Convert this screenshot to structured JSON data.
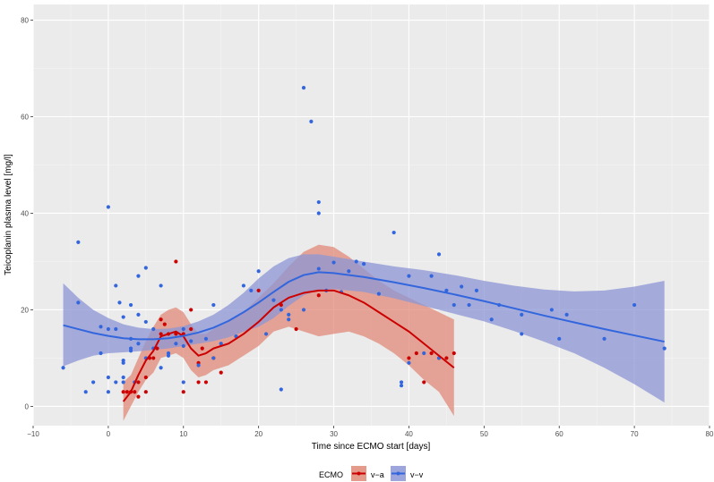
{
  "chart_data": {
    "type": "scatter",
    "title": "",
    "xlabel": "Time since ECMO start [days]",
    "ylabel": "Teicoplanin plasma level [mg/l]",
    "xlim": [
      -10,
      80
    ],
    "ylim": [
      0,
      80
    ],
    "xticks": [
      -10,
      0,
      10,
      20,
      30,
      40,
      50,
      60,
      70,
      80
    ],
    "yticks": [
      0,
      20,
      40,
      60,
      80
    ],
    "grid": true,
    "legend": {
      "title": "ECMO",
      "placement": "bottom",
      "entries": [
        {
          "label": "v−a",
          "color": "#cc0000",
          "band_color": "#e08a78"
        },
        {
          "label": "v−v",
          "color": "#3366dd",
          "band_color": "#8c96d6"
        }
      ]
    },
    "series": [
      {
        "name": "v−a",
        "color": "#cc0000",
        "points": [
          [
            2,
            3
          ],
          [
            2.5,
            3
          ],
          [
            3,
            3
          ],
          [
            3.5,
            3
          ],
          [
            4,
            2
          ],
          [
            4,
            5
          ],
          [
            5,
            3
          ],
          [
            5,
            6
          ],
          [
            5.5,
            10
          ],
          [
            6,
            10
          ],
          [
            6.5,
            12
          ],
          [
            7,
            18
          ],
          [
            7,
            15
          ],
          [
            7.5,
            17
          ],
          [
            8,
            15
          ],
          [
            9,
            30
          ],
          [
            9,
            15
          ],
          [
            10,
            3
          ],
          [
            10,
            15
          ],
          [
            11,
            16
          ],
          [
            11,
            20
          ],
          [
            12,
            5
          ],
          [
            12,
            9
          ],
          [
            12.5,
            12
          ],
          [
            13,
            5
          ],
          [
            14,
            10
          ],
          [
            15,
            7
          ],
          [
            20,
            24
          ],
          [
            23,
            21
          ],
          [
            25,
            16
          ],
          [
            28,
            23
          ],
          [
            40,
            10
          ],
          [
            41,
            11
          ],
          [
            42,
            5
          ],
          [
            43,
            11
          ],
          [
            44,
            10
          ],
          [
            45,
            10
          ],
          [
            46,
            11
          ]
        ],
        "smooth": [
          [
            2,
            1.0
          ],
          [
            3,
            3.0
          ],
          [
            4,
            6.5
          ],
          [
            5,
            9.5
          ],
          [
            6,
            11.5
          ],
          [
            7,
            14.5
          ],
          [
            8,
            15.0
          ],
          [
            9,
            15.5
          ],
          [
            10,
            14.5
          ],
          [
            11,
            12.0
          ],
          [
            12,
            10.5
          ],
          [
            13,
            11.0
          ],
          [
            14,
            12.0
          ],
          [
            16,
            13.0
          ],
          [
            18,
            15.0
          ],
          [
            20,
            17.5
          ],
          [
            22,
            20.5
          ],
          [
            24,
            22.5
          ],
          [
            26,
            23.5
          ],
          [
            28,
            24.0
          ],
          [
            30,
            24.0
          ],
          [
            32,
            23.0
          ],
          [
            34,
            21.5
          ],
          [
            36,
            19.5
          ],
          [
            38,
            17.5
          ],
          [
            40,
            15.5
          ],
          [
            42,
            13.0
          ],
          [
            44,
            10.5
          ],
          [
            46,
            8.0
          ]
        ],
        "upper": [
          [
            2,
            5.0
          ],
          [
            3,
            6.5
          ],
          [
            4,
            10.0
          ],
          [
            5,
            13.5
          ],
          [
            6,
            16.5
          ],
          [
            7,
            19.0
          ],
          [
            8,
            20.0
          ],
          [
            9,
            20.5
          ],
          [
            10,
            19.5
          ],
          [
            11,
            17.0
          ],
          [
            12,
            15.0
          ],
          [
            13,
            15.0
          ],
          [
            14,
            16.0
          ],
          [
            16,
            17.5
          ],
          [
            18,
            19.5
          ],
          [
            20,
            22.5
          ],
          [
            22,
            25.5
          ],
          [
            24,
            29.0
          ],
          [
            26,
            32.0
          ],
          [
            28,
            33.5
          ],
          [
            30,
            33.0
          ],
          [
            32,
            31.0
          ],
          [
            34,
            28.5
          ],
          [
            36,
            26.0
          ],
          [
            38,
            24.0
          ],
          [
            40,
            22.5
          ],
          [
            42,
            21.0
          ],
          [
            44,
            19.5
          ],
          [
            46,
            18.0
          ]
        ],
        "lower": [
          [
            2,
            -3.0
          ],
          [
            3,
            0.0
          ],
          [
            4,
            3.0
          ],
          [
            5,
            5.5
          ],
          [
            6,
            7.0
          ],
          [
            7,
            10.0
          ],
          [
            8,
            10.5
          ],
          [
            9,
            11.0
          ],
          [
            10,
            10.0
          ],
          [
            11,
            7.5
          ],
          [
            12,
            6.0
          ],
          [
            13,
            6.5
          ],
          [
            14,
            7.5
          ],
          [
            16,
            8.5
          ],
          [
            18,
            10.5
          ],
          [
            20,
            12.5
          ],
          [
            22,
            15.5
          ],
          [
            24,
            16.5
          ],
          [
            26,
            15.5
          ],
          [
            28,
            14.5
          ],
          [
            30,
            15.0
          ],
          [
            32,
            15.5
          ],
          [
            34,
            14.5
          ],
          [
            36,
            13.0
          ],
          [
            38,
            11.0
          ],
          [
            40,
            8.5
          ],
          [
            42,
            5.5
          ],
          [
            44,
            3.0
          ],
          [
            46,
            -2.0
          ]
        ]
      },
      {
        "name": "v−v",
        "color": "#3366dd",
        "points": [
          [
            -6,
            8
          ],
          [
            -4,
            34
          ],
          [
            -4,
            21.5
          ],
          [
            -3,
            3
          ],
          [
            -2,
            5
          ],
          [
            -1,
            11
          ],
          [
            -1,
            16.5
          ],
          [
            0,
            41.3
          ],
          [
            0,
            6
          ],
          [
            0,
            3
          ],
          [
            0,
            16
          ],
          [
            1,
            25
          ],
          [
            1,
            5
          ],
          [
            1,
            16
          ],
          [
            1.5,
            21.5
          ],
          [
            2,
            18.5
          ],
          [
            2,
            9
          ],
          [
            2,
            6
          ],
          [
            2,
            5
          ],
          [
            2,
            9.5
          ],
          [
            3,
            14
          ],
          [
            3,
            11.5
          ],
          [
            3,
            21
          ],
          [
            3,
            12
          ],
          [
            3.5,
            5
          ],
          [
            4,
            27
          ],
          [
            4,
            13
          ],
          [
            4,
            19
          ],
          [
            5,
            28.7
          ],
          [
            5,
            17.5
          ],
          [
            5,
            10
          ],
          [
            6,
            16
          ],
          [
            6,
            12
          ],
          [
            7,
            25
          ],
          [
            7,
            8
          ],
          [
            8,
            11
          ],
          [
            8,
            10.5
          ],
          [
            9,
            13
          ],
          [
            10,
            5
          ],
          [
            10,
            12.5
          ],
          [
            10,
            16
          ],
          [
            11,
            13.5
          ],
          [
            12,
            8.5
          ],
          [
            13,
            14
          ],
          [
            14,
            21
          ],
          [
            14,
            10
          ],
          [
            15,
            13
          ],
          [
            17,
            14.5
          ],
          [
            18,
            25
          ],
          [
            19,
            24
          ],
          [
            20,
            28
          ],
          [
            21,
            15
          ],
          [
            22,
            22
          ],
          [
            23,
            3.5
          ],
          [
            23,
            20
          ],
          [
            24,
            18
          ],
          [
            24,
            19
          ],
          [
            26,
            66
          ],
          [
            26,
            20
          ],
          [
            27,
            59
          ],
          [
            28,
            42.3
          ],
          [
            28,
            40
          ],
          [
            28,
            28.5
          ],
          [
            29,
            24
          ],
          [
            30,
            29.8
          ],
          [
            31,
            23.7
          ],
          [
            32,
            28
          ],
          [
            33,
            30
          ],
          [
            34,
            29.5
          ],
          [
            36,
            23.3
          ],
          [
            38,
            36
          ],
          [
            39,
            5
          ],
          [
            39,
            4.3
          ],
          [
            40,
            27
          ],
          [
            40,
            9
          ],
          [
            42,
            11
          ],
          [
            43,
            27
          ],
          [
            44,
            31.5
          ],
          [
            44,
            10
          ],
          [
            45,
            24
          ],
          [
            46,
            21
          ],
          [
            47,
            24.8
          ],
          [
            48,
            21
          ],
          [
            49,
            24
          ],
          [
            51,
            18
          ],
          [
            52,
            21
          ],
          [
            55,
            19
          ],
          [
            55,
            15
          ],
          [
            59,
            20
          ],
          [
            60,
            14
          ],
          [
            61,
            19
          ],
          [
            66,
            14
          ],
          [
            70,
            21
          ],
          [
            74,
            12
          ]
        ],
        "smooth": [
          [
            -6,
            16.8
          ],
          [
            -4,
            16.0
          ],
          [
            -2,
            15.2
          ],
          [
            0,
            14.6
          ],
          [
            2,
            14.1
          ],
          [
            4,
            13.9
          ],
          [
            6,
            13.9
          ],
          [
            8,
            14.1
          ],
          [
            10,
            14.6
          ],
          [
            12,
            15.3
          ],
          [
            14,
            16.3
          ],
          [
            16,
            17.7
          ],
          [
            18,
            19.5
          ],
          [
            20,
            21.5
          ],
          [
            22,
            23.7
          ],
          [
            24,
            25.8
          ],
          [
            26,
            27.2
          ],
          [
            28,
            27.8
          ],
          [
            30,
            27.6
          ],
          [
            34,
            26.8
          ],
          [
            38,
            25.7
          ],
          [
            42,
            24.5
          ],
          [
            46,
            23.2
          ],
          [
            50,
            21.8
          ],
          [
            54,
            20.3
          ],
          [
            58,
            18.8
          ],
          [
            62,
            17.4
          ],
          [
            66,
            16.0
          ],
          [
            70,
            14.7
          ],
          [
            74,
            13.4
          ]
        ],
        "upper": [
          [
            -6,
            25.5
          ],
          [
            -4,
            22.5
          ],
          [
            -2,
            20.0
          ],
          [
            0,
            18.3
          ],
          [
            2,
            17.0
          ],
          [
            4,
            16.3
          ],
          [
            6,
            16.0
          ],
          [
            8,
            16.1
          ],
          [
            10,
            16.6
          ],
          [
            12,
            17.6
          ],
          [
            14,
            19.0
          ],
          [
            16,
            21.0
          ],
          [
            18,
            23.5
          ],
          [
            20,
            26.5
          ],
          [
            22,
            29.0
          ],
          [
            24,
            30.7
          ],
          [
            26,
            31.5
          ],
          [
            28,
            31.5
          ],
          [
            30,
            31.0
          ],
          [
            34,
            30.0
          ],
          [
            38,
            29.0
          ],
          [
            42,
            28.2
          ],
          [
            46,
            27.2
          ],
          [
            50,
            26.0
          ],
          [
            54,
            25.0
          ],
          [
            58,
            24.2
          ],
          [
            62,
            23.8
          ],
          [
            66,
            24.0
          ],
          [
            70,
            24.8
          ],
          [
            74,
            26.0
          ]
        ],
        "lower": [
          [
            -6,
            8.3
          ],
          [
            -4,
            9.5
          ],
          [
            -2,
            10.5
          ],
          [
            0,
            11.0
          ],
          [
            2,
            11.2
          ],
          [
            4,
            11.4
          ],
          [
            6,
            11.7
          ],
          [
            8,
            12.0
          ],
          [
            10,
            12.5
          ],
          [
            12,
            13.0
          ],
          [
            14,
            13.5
          ],
          [
            16,
            14.3
          ],
          [
            18,
            15.5
          ],
          [
            20,
            16.5
          ],
          [
            22,
            18.3
          ],
          [
            24,
            20.8
          ],
          [
            26,
            23.0
          ],
          [
            28,
            24.1
          ],
          [
            30,
            24.3
          ],
          [
            34,
            23.7
          ],
          [
            38,
            22.4
          ],
          [
            42,
            20.8
          ],
          [
            46,
            19.2
          ],
          [
            50,
            17.6
          ],
          [
            54,
            15.6
          ],
          [
            58,
            13.4
          ],
          [
            62,
            11.0
          ],
          [
            66,
            8.0
          ],
          [
            70,
            4.6
          ],
          [
            74,
            0.8
          ]
        ]
      }
    ]
  }
}
